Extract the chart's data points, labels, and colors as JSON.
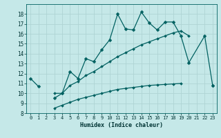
{
  "xlabel": "Humidex (Indice chaleur)",
  "background_color": "#c5e8e8",
  "grid_color": "#afd4d4",
  "line_color": "#006060",
  "xlim": [
    -0.5,
    23.5
  ],
  "ylim": [
    8,
    19
  ],
  "xticks": [
    0,
    1,
    2,
    3,
    4,
    5,
    6,
    7,
    8,
    9,
    10,
    11,
    12,
    13,
    14,
    15,
    16,
    17,
    18,
    19,
    20,
    21,
    22,
    23
  ],
  "yticks": [
    8,
    9,
    10,
    11,
    12,
    13,
    14,
    15,
    16,
    17,
    18
  ],
  "series1_x": [
    0,
    1,
    2,
    3,
    4,
    5,
    6,
    7,
    8,
    9,
    10,
    11,
    12,
    13,
    14,
    15,
    16,
    17,
    18,
    19,
    20,
    22,
    23
  ],
  "series1_y": [
    11.5,
    10.7,
    null,
    9.5,
    10.0,
    12.2,
    11.5,
    13.5,
    13.2,
    14.4,
    15.4,
    18.0,
    16.5,
    16.4,
    18.2,
    17.1,
    16.4,
    17.2,
    17.2,
    15.8,
    13.1,
    15.8,
    10.8
  ],
  "series2_x": [
    3,
    4,
    5,
    6,
    7,
    8,
    9,
    10,
    11,
    12,
    13,
    14,
    15,
    16,
    17,
    18,
    19,
    20,
    21,
    22,
    23
  ],
  "series2_y": [
    10.0,
    10.0,
    10.8,
    11.2,
    11.8,
    12.2,
    12.7,
    13.2,
    13.7,
    14.1,
    14.5,
    14.9,
    15.2,
    15.5,
    15.8,
    16.1,
    16.3,
    15.8,
    null,
    null,
    10.8
  ],
  "series3_x": [
    3,
    4,
    5,
    6,
    7,
    8,
    9,
    10,
    11,
    12,
    13,
    14,
    15,
    16,
    17,
    18,
    19,
    20,
    21,
    22,
    23
  ],
  "series3_y": [
    8.5,
    8.8,
    9.1,
    9.4,
    9.6,
    9.8,
    10.0,
    10.2,
    10.4,
    10.5,
    10.6,
    10.7,
    10.8,
    10.85,
    10.9,
    10.95,
    11.0,
    null,
    null,
    null,
    10.8
  ]
}
